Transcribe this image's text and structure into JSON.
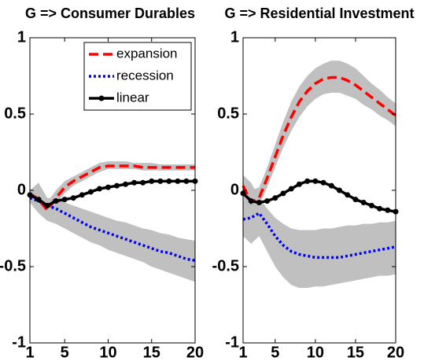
{
  "chart_data": [
    {
      "type": "line",
      "title": "G => Consumer Durables",
      "x": [
        1,
        2,
        3,
        4,
        5,
        6,
        7,
        8,
        9,
        10,
        11,
        12,
        13,
        14,
        15,
        16,
        17,
        18,
        19,
        20
      ],
      "xlim": [
        1,
        20
      ],
      "ylim": [
        -1,
        1
      ],
      "xticks": [
        1,
        5,
        10,
        15,
        20
      ],
      "yticks": [
        -1,
        -0.5,
        0,
        0.5,
        1
      ],
      "legend": "upper right",
      "bands": [
        {
          "color": "#c0c0c0",
          "lower": [
            -0.04,
            -0.1,
            -0.16,
            -0.09,
            -0.02,
            0.03,
            0.06,
            0.09,
            0.12,
            0.14,
            0.14,
            0.14,
            0.14,
            0.13,
            0.13,
            0.13,
            0.13,
            0.13,
            0.13,
            0.13
          ],
          "upper": [
            0.0,
            0.02,
            -0.08,
            0.0,
            0.06,
            0.09,
            0.12,
            0.15,
            0.18,
            0.19,
            0.19,
            0.19,
            0.18,
            0.18,
            0.18,
            0.17,
            0.17,
            0.17,
            0.17,
            0.17
          ]
        },
        {
          "color": "#c0c0c0",
          "lower": [
            -0.08,
            -0.15,
            -0.2,
            -0.22,
            -0.25,
            -0.28,
            -0.31,
            -0.34,
            -0.36,
            -0.39,
            -0.41,
            -0.43,
            -0.45,
            -0.47,
            -0.5,
            -0.52,
            -0.54,
            -0.56,
            -0.58,
            -0.6
          ],
          "upper": [
            0.0,
            0.05,
            -0.05,
            -0.05,
            -0.08,
            -0.1,
            -0.12,
            -0.14,
            -0.16,
            -0.18,
            -0.2,
            -0.21,
            -0.23,
            -0.25,
            -0.26,
            -0.28,
            -0.29,
            -0.31,
            -0.32,
            -0.33
          ]
        }
      ],
      "series": [
        {
          "name": "expansion",
          "color": "#ff0000",
          "style": "dashed",
          "values": [
            -0.02,
            -0.06,
            -0.13,
            -0.05,
            0.02,
            0.06,
            0.09,
            0.12,
            0.15,
            0.16,
            0.16,
            0.16,
            0.16,
            0.15,
            0.15,
            0.15,
            0.15,
            0.15,
            0.15,
            0.15
          ]
        },
        {
          "name": "recession",
          "color": "#0000ff",
          "style": "dotted",
          "values": [
            -0.05,
            -0.07,
            -0.1,
            -0.12,
            -0.15,
            -0.18,
            -0.21,
            -0.24,
            -0.26,
            -0.28,
            -0.3,
            -0.32,
            -0.34,
            -0.36,
            -0.38,
            -0.4,
            -0.41,
            -0.43,
            -0.45,
            -0.46
          ]
        },
        {
          "name": "linear",
          "color": "#000000",
          "style": "solid",
          "marker": "circle",
          "values": [
            -0.03,
            -0.06,
            -0.1,
            -0.07,
            -0.06,
            -0.05,
            -0.03,
            -0.01,
            0.01,
            0.02,
            0.03,
            0.04,
            0.05,
            0.05,
            0.06,
            0.06,
            0.06,
            0.06,
            0.06,
            0.06
          ]
        }
      ]
    },
    {
      "type": "line",
      "title": "G => Residential Investment",
      "x": [
        1,
        2,
        3,
        4,
        5,
        6,
        7,
        8,
        9,
        10,
        11,
        12,
        13,
        14,
        15,
        16,
        17,
        18,
        19,
        20
      ],
      "xlim": [
        1,
        20
      ],
      "ylim": [
        -1,
        1
      ],
      "xticks": [
        1,
        5,
        10,
        15,
        20
      ],
      "yticks": [
        -1,
        -0.5,
        0,
        0.5,
        1
      ],
      "bands": [
        {
          "color": "#c0c0c0",
          "lower": [
            -0.02,
            -0.14,
            -0.1,
            0.02,
            0.15,
            0.28,
            0.39,
            0.48,
            0.55,
            0.6,
            0.63,
            0.64,
            0.64,
            0.62,
            0.6,
            0.56,
            0.53,
            0.49,
            0.46,
            0.42
          ],
          "upper": [
            0.1,
            0.0,
            0.02,
            0.15,
            0.3,
            0.45,
            0.58,
            0.68,
            0.75,
            0.8,
            0.83,
            0.85,
            0.85,
            0.83,
            0.8,
            0.75,
            0.7,
            0.66,
            0.61,
            0.57
          ]
        },
        {
          "color": "#c0c0c0",
          "lower": [
            -0.3,
            -0.35,
            -0.3,
            -0.4,
            -0.5,
            -0.57,
            -0.62,
            -0.64,
            -0.64,
            -0.63,
            -0.63,
            -0.62,
            -0.61,
            -0.6,
            -0.59,
            -0.58,
            -0.57,
            -0.56,
            -0.56,
            -0.55
          ],
          "upper": [
            0.1,
            0.05,
            -0.05,
            -0.12,
            -0.18,
            -0.22,
            -0.25,
            -0.26,
            -0.26,
            -0.26,
            -0.25,
            -0.25,
            -0.24,
            -0.23,
            -0.23,
            -0.22,
            -0.22,
            -0.21,
            -0.21,
            -0.2
          ]
        }
      ],
      "series": [
        {
          "color": "#ff0000",
          "style": "dashed",
          "values": [
            0.03,
            -0.08,
            -0.05,
            0.08,
            0.22,
            0.36,
            0.48,
            0.58,
            0.65,
            0.7,
            0.73,
            0.74,
            0.74,
            0.72,
            0.69,
            0.65,
            0.61,
            0.57,
            0.53,
            0.49
          ]
        },
        {
          "color": "#0000ff",
          "style": "dotted",
          "values": [
            -0.19,
            -0.18,
            -0.15,
            -0.22,
            -0.3,
            -0.36,
            -0.4,
            -0.42,
            -0.43,
            -0.44,
            -0.44,
            -0.44,
            -0.44,
            -0.43,
            -0.42,
            -0.41,
            -0.4,
            -0.39,
            -0.38,
            -0.37
          ]
        },
        {
          "color": "#000000",
          "style": "solid",
          "marker": "circle",
          "values": [
            -0.02,
            -0.07,
            -0.08,
            -0.07,
            -0.05,
            -0.02,
            0.01,
            0.04,
            0.06,
            0.06,
            0.05,
            0.03,
            0.0,
            -0.03,
            -0.06,
            -0.08,
            -0.1,
            -0.12,
            -0.13,
            -0.14
          ]
        }
      ]
    }
  ]
}
